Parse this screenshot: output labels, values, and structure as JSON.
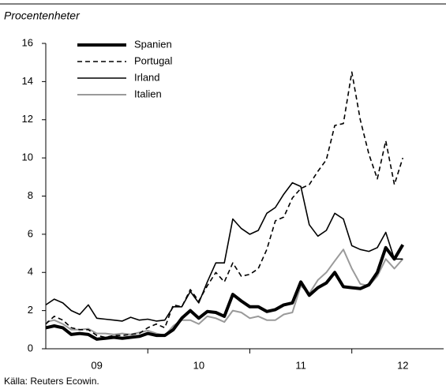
{
  "chart_data": {
    "type": "line",
    "subtitle": "Procentenheter",
    "source": "Källa: Reuters Ecowin.",
    "x": [
      2009,
      2009.083,
      2009.167,
      2009.25,
      2009.333,
      2009.417,
      2009.5,
      2009.583,
      2009.667,
      2009.75,
      2009.833,
      2009.917,
      2010,
      2010.083,
      2010.167,
      2010.25,
      2010.333,
      2010.417,
      2010.5,
      2010.583,
      2010.667,
      2010.75,
      2010.833,
      2010.917,
      2011,
      2011.083,
      2011.167,
      2011.25,
      2011.333,
      2011.417,
      2011.5,
      2011.583,
      2011.667,
      2011.75,
      2011.833,
      2011.917,
      2012,
      2012.083,
      2012.167,
      2012.25,
      2012.333,
      2012.417,
      2012.5
    ],
    "series": [
      {
        "name": "Italien",
        "color": "#9a9a9a",
        "width": 2,
        "dash": "none",
        "values": [
          1.4,
          1.5,
          1.3,
          1.0,
          1.0,
          1.05,
          0.8,
          0.8,
          0.75,
          0.8,
          0.75,
          0.85,
          0.95,
          0.8,
          0.7,
          1.2,
          1.5,
          1.5,
          1.3,
          1.7,
          1.6,
          1.4,
          2.0,
          1.9,
          1.6,
          1.7,
          1.5,
          1.5,
          1.8,
          1.9,
          3.3,
          2.9,
          3.6,
          4.0,
          4.6,
          5.2,
          4.2,
          3.4,
          3.3,
          3.8,
          4.7,
          4.2,
          4.7
        ]
      },
      {
        "name": "Irland",
        "color": "#000000",
        "width": 1.6,
        "dash": "none",
        "values": [
          2.3,
          2.6,
          2.4,
          2.0,
          1.8,
          2.3,
          1.6,
          1.55,
          1.5,
          1.45,
          1.65,
          1.5,
          1.55,
          1.45,
          1.5,
          2.2,
          2.2,
          3.0,
          2.4,
          3.5,
          4.5,
          4.5,
          6.8,
          6.3,
          6.0,
          6.2,
          7.1,
          7.4,
          8.1,
          8.7,
          8.5,
          6.5,
          5.9,
          6.2,
          7.1,
          6.8,
          5.4,
          5.2,
          5.1,
          5.3,
          6.1,
          4.7,
          4.7
        ]
      },
      {
        "name": "Portugal",
        "color": "#000000",
        "width": 1.6,
        "dash": "6 4",
        "values": [
          1.3,
          1.7,
          1.5,
          1.1,
          1.0,
          1.0,
          0.7,
          0.6,
          0.7,
          0.7,
          0.75,
          0.8,
          1.1,
          1.3,
          1.1,
          2.3,
          2.2,
          3.1,
          2.5,
          3.3,
          4.0,
          3.5,
          4.5,
          3.8,
          3.9,
          4.2,
          5.2,
          6.7,
          6.9,
          7.9,
          8.4,
          8.6,
          9.3,
          9.9,
          11.7,
          11.8,
          14.5,
          12.0,
          10.2,
          8.9,
          10.9,
          8.6,
          10.0
        ]
      },
      {
        "name": "Spanien",
        "color": "#000000",
        "width": 4,
        "dash": "none",
        "values": [
          1.1,
          1.2,
          1.1,
          0.75,
          0.8,
          0.75,
          0.5,
          0.55,
          0.6,
          0.55,
          0.6,
          0.65,
          0.8,
          0.7,
          0.7,
          1.0,
          1.6,
          2.0,
          1.6,
          1.95,
          1.9,
          1.7,
          2.85,
          2.5,
          2.2,
          2.2,
          1.95,
          2.05,
          2.3,
          2.4,
          3.5,
          2.8,
          3.2,
          3.45,
          4.0,
          3.25,
          3.2,
          3.15,
          3.35,
          4.0,
          5.3,
          4.7,
          5.45
        ]
      }
    ],
    "legend_order": [
      3,
      2,
      1,
      0
    ],
    "xlim": [
      2009,
      2012.9
    ],
    "xticks": [
      {
        "value": 2009.5,
        "label": "09"
      },
      {
        "value": 2010.5,
        "label": "10"
      },
      {
        "value": 2011.5,
        "label": "11"
      },
      {
        "value": 2012.5,
        "label": "12"
      }
    ],
    "xtick_marks": [
      2010,
      2011,
      2012
    ],
    "ylim": [
      0,
      16
    ],
    "yticks": [
      0,
      2,
      4,
      6,
      8,
      10,
      12,
      14,
      16
    ],
    "legend": "upper left"
  }
}
